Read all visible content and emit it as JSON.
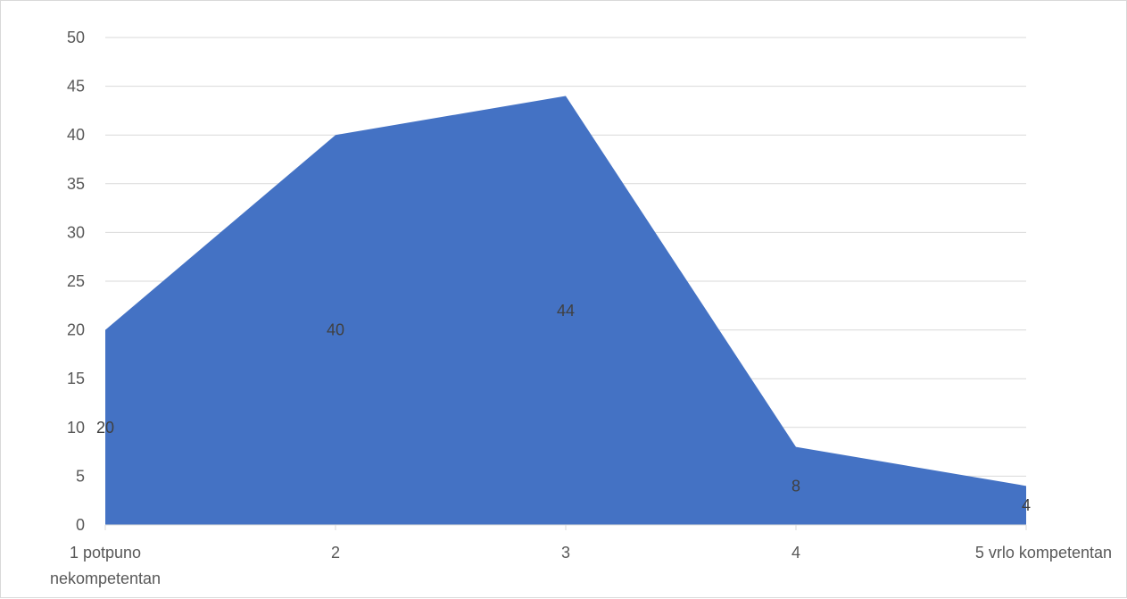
{
  "chart_data": {
    "type": "area",
    "title": "",
    "xlabel": "",
    "ylabel": "",
    "categories": [
      "1 potpuno\nnekompetentan",
      "2",
      "3",
      "4",
      "5 vrlo kompetentan"
    ],
    "values": [
      20,
      40,
      44,
      8,
      4
    ],
    "data_labels": [
      "20",
      "40",
      "44",
      "8",
      "4"
    ],
    "ylim": [
      0,
      50
    ],
    "yticks": [
      0,
      5,
      10,
      15,
      20,
      25,
      30,
      35,
      40,
      45,
      50
    ],
    "grid": true,
    "legend": "none",
    "colors": {
      "area": "#4472c4",
      "grid": "#d9d9d9",
      "axis": "#d9d9d9",
      "text": "#595959",
      "label": "#404040"
    }
  }
}
